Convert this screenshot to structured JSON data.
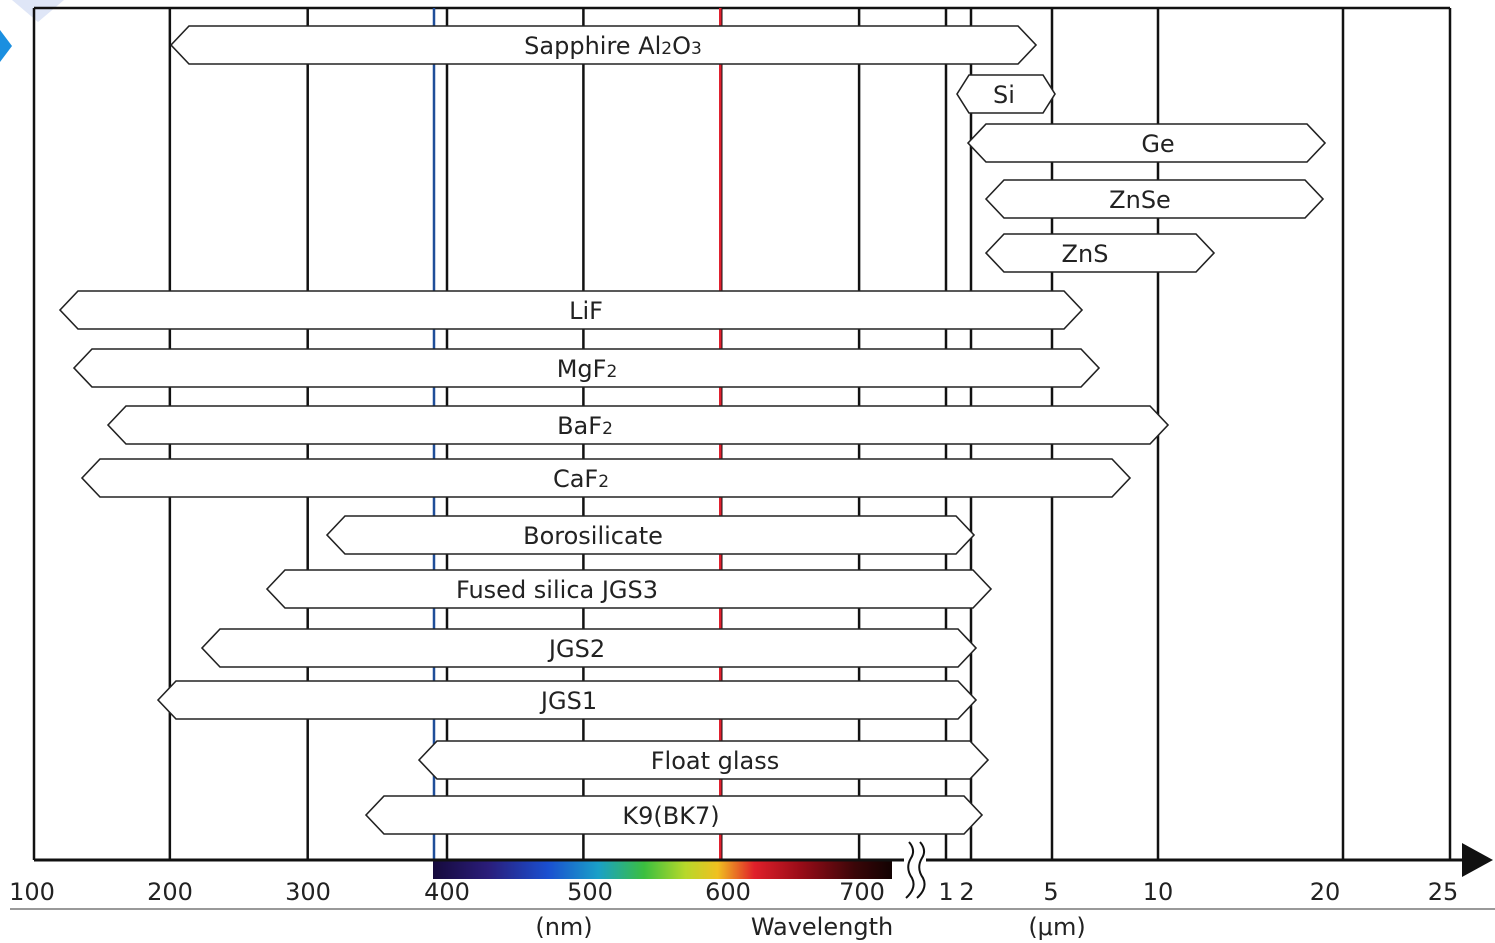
{
  "chart_data": {
    "type": "range-bar",
    "xlabel": "Wavelength",
    "units": {
      "nm": "(nm)",
      "um": "(μm)"
    },
    "ticks": [
      {
        "value": 100,
        "unit": "nm",
        "label": "100"
      },
      {
        "value": 200,
        "unit": "nm",
        "label": "200"
      },
      {
        "value": 300,
        "unit": "nm",
        "label": "300"
      },
      {
        "value": 400,
        "unit": "nm",
        "label": "400"
      },
      {
        "value": 500,
        "unit": "nm",
        "label": "500"
      },
      {
        "value": 600,
        "unit": "nm",
        "label": "600"
      },
      {
        "value": 700,
        "unit": "nm",
        "label": "700"
      },
      {
        "value": 1,
        "unit": "um",
        "label": "1"
      },
      {
        "value": 2,
        "unit": "um",
        "label": "2"
      },
      {
        "value": 5,
        "unit": "um",
        "label": "5"
      },
      {
        "value": 10,
        "unit": "um",
        "label": "10"
      },
      {
        "value": 20,
        "unit": "um",
        "label": "20"
      },
      {
        "value": 25,
        "unit": "um",
        "label": "25"
      }
    ],
    "axis_break": "between 700 nm and 1 μm",
    "reference_lines": [
      {
        "wavelength_nm": 400,
        "color": "#1f4e99"
      },
      {
        "wavelength_nm": 600,
        "color": "#e0202e"
      }
    ],
    "spectrum_bar": {
      "from_nm": 400,
      "to_nm": 730
    },
    "materials": [
      {
        "label": "Sapphire Al2O3",
        "parts": [
          [
            "Sapphire Al",
            ""
          ],
          [
            "2",
            "sub"
          ],
          [
            "O",
            ""
          ],
          [
            "3",
            "sub"
          ]
        ],
        "from_nm": 200,
        "to_um": 4.8
      },
      {
        "label": "Si",
        "parts": [
          [
            "Si",
            ""
          ]
        ],
        "from_um": 1.2,
        "to_um": 5
      },
      {
        "label": "Ge",
        "parts": [
          [
            "Ge",
            ""
          ]
        ],
        "from_um": 1.9,
        "to_um": 20
      },
      {
        "label": "ZnSe",
        "parts": [
          [
            "ZnSe",
            ""
          ]
        ],
        "from_um": 2.3,
        "to_um": 20
      },
      {
        "label": "ZnS",
        "parts": [
          [
            "ZnS",
            ""
          ]
        ],
        "from_um": 2.3,
        "to_um": 13
      },
      {
        "label": "LiF",
        "parts": [
          [
            "LiF",
            ""
          ]
        ],
        "from_nm": 120,
        "to_um": 6
      },
      {
        "label": "MgF2",
        "parts": [
          [
            "MgF",
            ""
          ],
          [
            "2",
            "sub"
          ]
        ],
        "from_nm": 130,
        "to_um": 6.5
      },
      {
        "label": "BaF2",
        "parts": [
          [
            "BaF",
            ""
          ],
          [
            "2",
            "sub"
          ]
        ],
        "from_nm": 150,
        "to_um": 10.5
      },
      {
        "label": "CaF2",
        "parts": [
          [
            "CaF",
            ""
          ],
          [
            "2",
            "sub"
          ]
        ],
        "from_nm": 135,
        "to_um": 7.5
      },
      {
        "label": "Borosilicate",
        "parts": [
          [
            "Borosilicate",
            ""
          ]
        ],
        "from_nm": 330,
        "to_um": 2.1
      },
      {
        "label": "Fused silica JGS3",
        "parts": [
          [
            "Fused silica JGS3",
            ""
          ]
        ],
        "from_nm": 265,
        "to_um": 2.5
      },
      {
        "label": "JGS2",
        "parts": [
          [
            "JGS2",
            ""
          ]
        ],
        "from_nm": 220,
        "to_um": 2.1
      },
      {
        "label": "JGS1",
        "parts": [
          [
            "JGS1",
            ""
          ]
        ],
        "from_nm": 185,
        "to_um": 2.1
      },
      {
        "label": "Float glass",
        "parts": [
          [
            "Float glass",
            ""
          ]
        ],
        "from_nm": 380,
        "to_um": 2.4
      },
      {
        "label": "K9(BK7)",
        "parts": [
          [
            "K9(BK7)",
            ""
          ]
        ],
        "from_nm": 350,
        "to_um": 2.3
      }
    ]
  },
  "colors": {
    "axis": "#111111",
    "band_stroke": "#222222",
    "band_fill": "#ffffff",
    "accent_blue": "#1b8fe0"
  }
}
